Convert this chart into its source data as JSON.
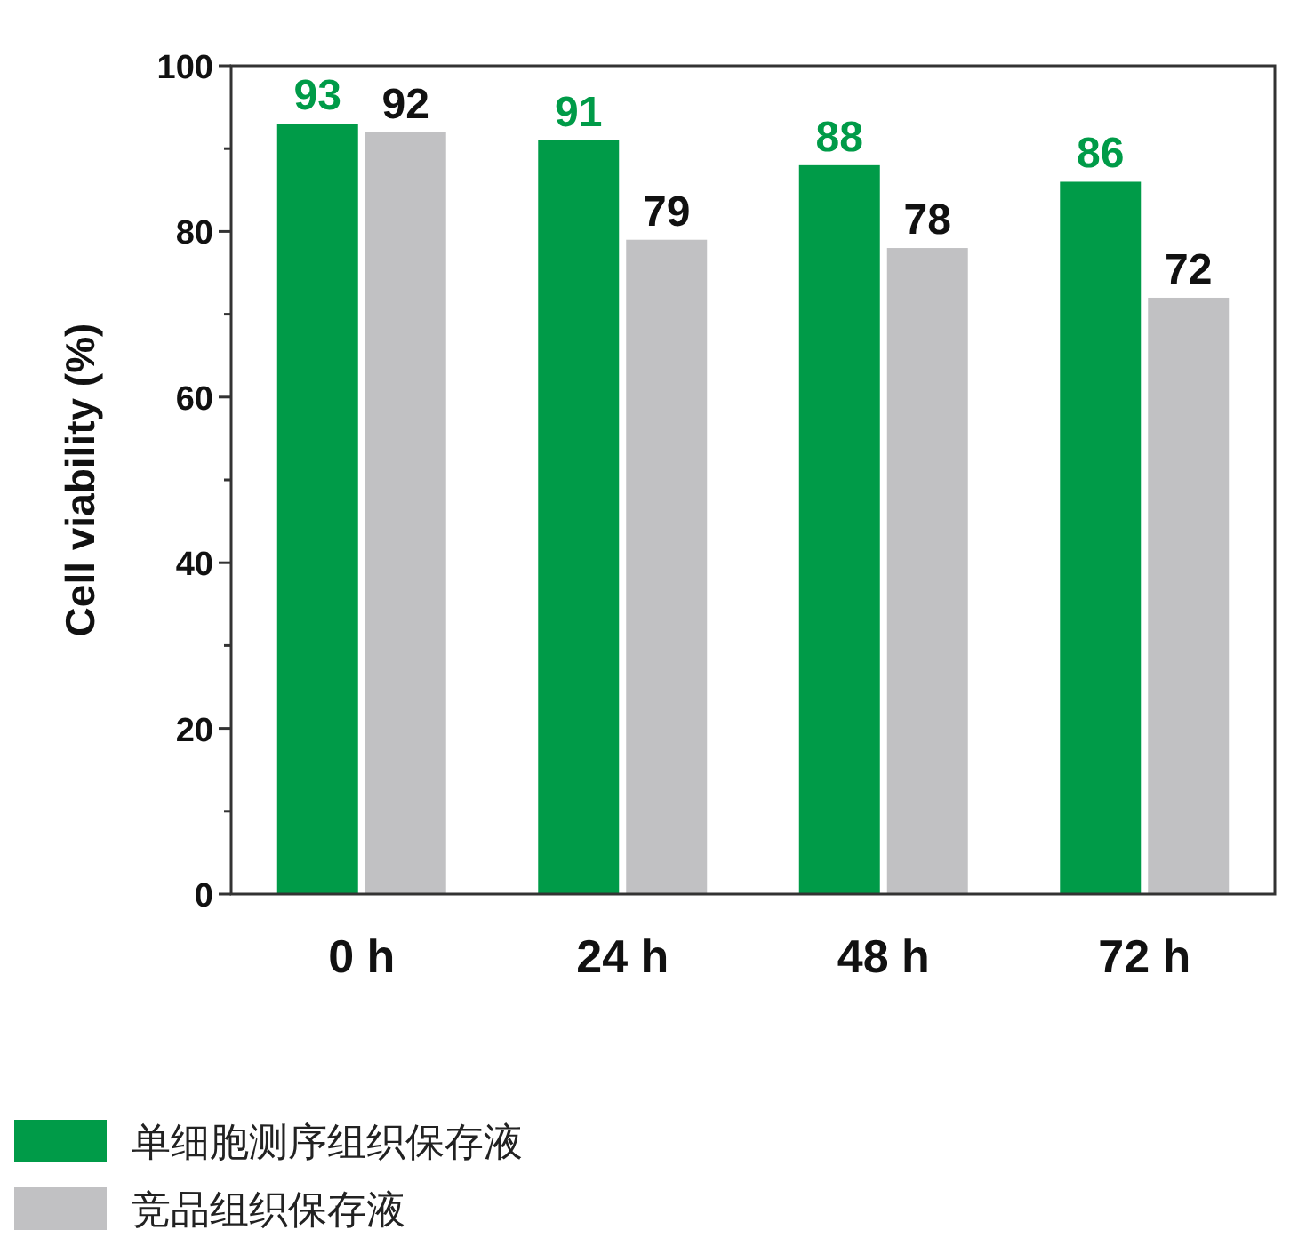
{
  "chart_data": {
    "type": "bar",
    "ylabel": "Cell viability (%)",
    "categories": [
      "0 h",
      "24 h",
      "48 h",
      "72 h"
    ],
    "series": [
      {
        "name": "单细胞测序组织保存液",
        "color": "#009b48",
        "values": [
          93,
          91,
          88,
          86
        ]
      },
      {
        "name": "竞品组织保存液",
        "color": "#c1c1c3",
        "values": [
          92,
          79,
          78,
          72
        ]
      }
    ],
    "ylim": [
      0,
      100
    ],
    "yticks": [
      0,
      {
        "value": 10,
        "label": null
      },
      20,
      {
        "value": 30,
        "label": null
      },
      40,
      {
        "value": 50,
        "label": null
      },
      60,
      {
        "value": 70,
        "label": null
      },
      80,
      {
        "value": 90,
        "label": null
      },
      100
    ],
    "data_labels": true,
    "grid": false,
    "legend": "bottom left"
  }
}
